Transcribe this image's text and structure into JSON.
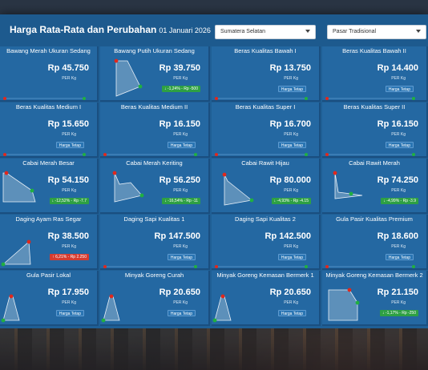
{
  "header": {
    "title": "Harga Rata-Rata dan Perubahan",
    "date": "01 Januari 2026",
    "province_select": "Sumatera Selatan",
    "market_select": "Pasar Tradisional"
  },
  "unit_label": "PER Kg",
  "colors": {
    "up": "#d63b2f",
    "down": "#2ea043",
    "flat": "#2a75b3",
    "panel": "#2468a2"
  },
  "cards": [
    {
      "name": "Bawang Merah Ukuran Sedang",
      "price": "Rp 45.750",
      "badge": "",
      "type": "none"
    },
    {
      "name": "Bawang Putih Ukuran Sedang",
      "price": "Rp 39.750",
      "badge": "↓ -1,24% - Rp -500",
      "type": "down"
    },
    {
      "name": "Beras Kualitas Bawah I",
      "price": "Rp 13.750",
      "badge": "Harga Tetap",
      "type": "flat"
    },
    {
      "name": "Beras Kualitas Bawah II",
      "price": "Rp 14.400",
      "badge": "Harga Tetap",
      "type": "flat"
    },
    {
      "name": "Beras Kualitas Medium I",
      "price": "Rp 15.650",
      "badge": "Harga Tetap",
      "type": "flat"
    },
    {
      "name": "Beras Kualitas Medium II",
      "price": "Rp 16.150",
      "badge": "Harga Tetap",
      "type": "flat"
    },
    {
      "name": "Beras Kualitas Super I",
      "price": "Rp 16.700",
      "badge": "Harga Tetap",
      "type": "flat"
    },
    {
      "name": "Beras Kualitas Super II",
      "price": "Rp 16.150",
      "badge": "Harga Tetap",
      "type": "flat"
    },
    {
      "name": "Cabai Merah Besar",
      "price": "Rp 54.150",
      "badge": "↓ -12,52% - Rp -7.7",
      "type": "down"
    },
    {
      "name": "Cabai Merah Keriting",
      "price": "Rp 56.250",
      "badge": "↓ -16,54% - Rp -11",
      "type": "down"
    },
    {
      "name": "Cabai Rawit Hijau",
      "price": "Rp 80.000",
      "badge": "↓ -4,93% - Rp -4.15",
      "type": "down"
    },
    {
      "name": "Cabai Rawit Merah",
      "price": "Rp 74.250",
      "badge": "↓ -4,99% - Rp -3.9",
      "type": "down"
    },
    {
      "name": "Daging Ayam Ras Segar",
      "price": "Rp 38.500",
      "badge": "↑ 6,21% - Rp 2.250",
      "type": "up"
    },
    {
      "name": "Daging Sapi Kualitas 1",
      "price": "Rp 147.500",
      "badge": "Harga Tetap",
      "type": "flat"
    },
    {
      "name": "Daging Sapi Kualitas 2",
      "price": "Rp 142.500",
      "badge": "Harga Tetap",
      "type": "flat"
    },
    {
      "name": "Gula Pasir Kualitas Premium",
      "price": "Rp 18.600",
      "badge": "Harga Tetap",
      "type": "flat"
    },
    {
      "name": "Gula Pasir Lokal",
      "price": "Rp 17.950",
      "badge": "Harga Tetap",
      "type": "flat"
    },
    {
      "name": "Minyak Goreng Curah",
      "price": "Rp 20.650",
      "badge": "Harga Tetap",
      "type": "flat"
    },
    {
      "name": "Minyak Goreng Kemasan Bermerk 1",
      "price": "Rp 20.650",
      "badge": "Harga Tetap",
      "type": "flat"
    },
    {
      "name": "Minyak Goreng Kemasan Bermerk 2",
      "price": "Rp 21.150",
      "badge": "↓ -1,17% - Rp -250",
      "type": "down"
    }
  ],
  "sparks": [
    "none",
    "drop",
    "flatline",
    "flatline",
    "flatline",
    "flatline",
    "flatline",
    "flatline",
    "drop2",
    "drop3",
    "drop4",
    "drop5",
    "rise",
    "flatline",
    "flatline",
    "flatline",
    "hill",
    "hill",
    "hill",
    "dip"
  ]
}
